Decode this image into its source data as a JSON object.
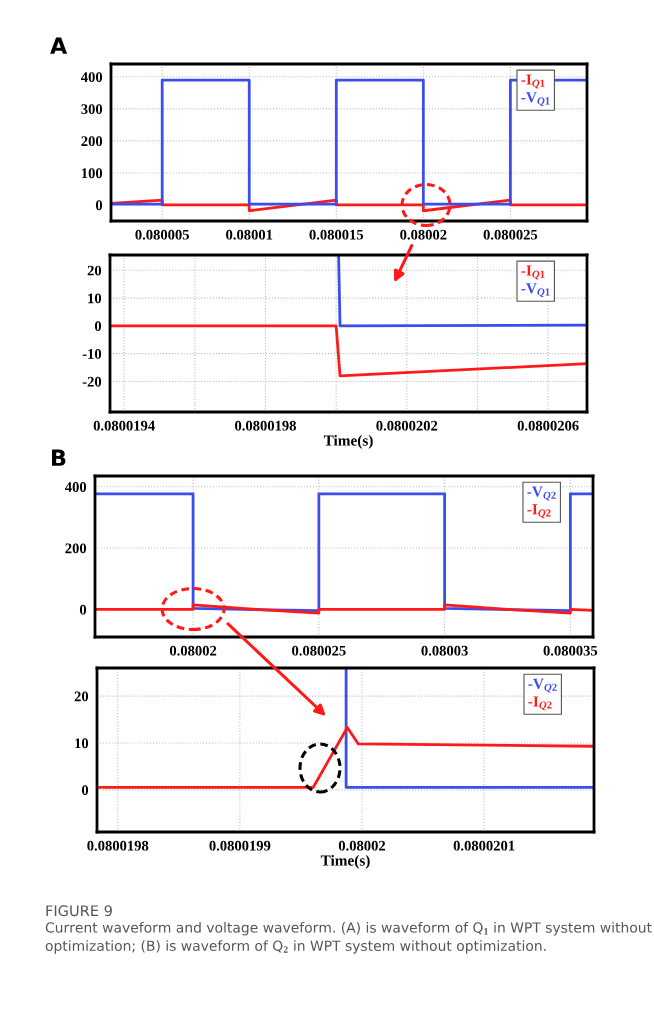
{
  "chart_data": [
    {
      "type": "line",
      "title": "A",
      "xlim": [
        0.08000206,
        0.0800294
      ],
      "ylim": [
        -50,
        440
      ],
      "xticks": [
        0.080005,
        0.08001,
        0.080015,
        0.08002,
        0.080025
      ],
      "yticks": [
        0,
        100,
        200,
        300,
        400
      ],
      "grid": true,
      "legend": "top right",
      "marker": "none",
      "line_style": "solid",
      "series": [
        {
          "name": "-I$_{Q1}$",
          "color": "#ff1a1a",
          "x": [
            0.08000206,
            0.080005,
            0.080005,
            0.08001,
            0.08001,
            0.080015,
            0.080015,
            0.08002,
            0.08002,
            0.080025,
            0.080025,
            0.0800294
          ],
          "values": [
            5,
            15,
            0,
            0,
            -18,
            15,
            0,
            0,
            -18,
            15,
            0,
            0
          ]
        },
        {
          "name": "-V$_{Q1}$",
          "color": "#3a4ef0",
          "x": [
            0.08000206,
            0.080005,
            0.080005,
            0.08001,
            0.08001,
            0.080015,
            0.080015,
            0.08002,
            0.08002,
            0.080025,
            0.080025,
            0.0800294
          ],
          "values": [
            3,
            3,
            390,
            390,
            3,
            3,
            390,
            390,
            3,
            3,
            390,
            390
          ]
        }
      ]
    },
    {
      "type": "line",
      "xlabel": "Time(s)",
      "xlim": [
        0.08001936,
        0.08002071
      ],
      "ylim": [
        -31,
        25.5
      ],
      "xticks": [
        0.0800194,
        {
          "value": 0.0800196,
          "label": null
        },
        0.0800198,
        {
          "value": 0.08002,
          "label": null
        },
        0.0800202,
        {
          "value": 0.0800204,
          "label": null
        },
        0.0800206
      ],
      "yticks": [
        -20,
        -10,
        0,
        10,
        20
      ],
      "grid": true,
      "legend": "top right",
      "marker": "none",
      "line_style": "solid",
      "series": [
        {
          "name": "-I$_{Q1}$",
          "color": "#ff1a1a",
          "x": [
            0.08001936,
            0.08002,
            0.080020011,
            0.08002071
          ],
          "values": [
            0,
            0,
            -18,
            -13.6
          ]
        },
        {
          "name": "-V$_{Q1}$",
          "color": "#3a4ef0",
          "x": [
            0.080020007,
            0.080020011,
            0.08002071
          ],
          "values": [
            25.5,
            0,
            0.3
          ]
        }
      ]
    },
    {
      "type": "line",
      "title": "B",
      "xlim": [
        0.0800161,
        0.0800359
      ],
      "ylim": [
        -90,
        435
      ],
      "xticks": [
        0.08002,
        0.080025,
        0.08003,
        0.080035
      ],
      "yticks": [
        0,
        200,
        400
      ],
      "grid": true,
      "legend": "top right",
      "marker": "none",
      "line_style": "solid",
      "series": [
        {
          "name": "-V$_{Q2}$",
          "color": "#3a4ef0",
          "x": [
            0.0800161,
            0.08002,
            0.08002,
            0.080025,
            0.080025,
            0.08003,
            0.08003,
            0.080035,
            0.080035,
            0.0800359
          ],
          "values": [
            377,
            377,
            3,
            -4,
            377,
            377,
            3,
            -4,
            377,
            377
          ]
        },
        {
          "name": "-I$_{Q2}$",
          "color": "#ff1a1a",
          "x": [
            0.0800161,
            0.08002,
            0.08002,
            0.0800225,
            0.080025,
            0.080025,
            0.08003,
            0.08003,
            0.0800325,
            0.080035,
            0.080035,
            0.0800359
          ],
          "values": [
            0,
            0,
            15,
            0,
            -12,
            0,
            0,
            15,
            0,
            -12,
            0,
            -3
          ]
        }
      ]
    },
    {
      "type": "line",
      "xlabel": "Time(s)",
      "xlim": [
        0.080019783,
        0.08002019
      ],
      "ylim": [
        -9,
        26
      ],
      "xticks": [
        0.0800198,
        0.0800199,
        0.08002,
        0.0800201
      ],
      "yticks": [
        0,
        10,
        20
      ],
      "grid": true,
      "legend": "top right",
      "marker": "none",
      "line_style": "solid",
      "annotations": [
        "FIGURE 9",
        "Current waveform and voltage waveform. (A) is waveform of Q$_{1}$ in WPT system without optimization; (B) is waveform of Q$_{2}$ in WPT system without optimization."
      ],
      "series": [
        {
          "name": "-V$_{Q2}$",
          "color": "#3a4ef0",
          "x": [
            0.080019987,
            0.080019987,
            0.08002019
          ],
          "values": [
            26,
            0.5,
            0.5
          ]
        },
        {
          "name": "-I$_{Q2}$",
          "color": "#ff1a1a",
          "x": [
            0.080019783,
            0.08001996,
            0.080019988,
            0.080019997,
            0.08002019
          ],
          "values": [
            0.5,
            0.5,
            13.3,
            9.8,
            9.3
          ]
        }
      ]
    }
  ]
}
